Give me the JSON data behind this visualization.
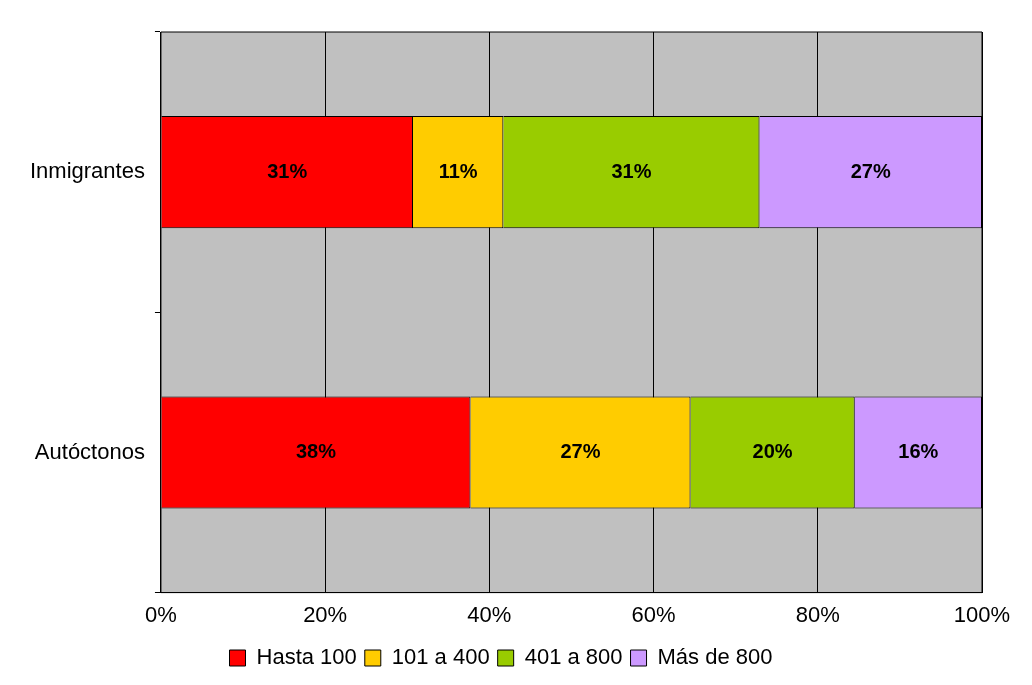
{
  "chart_data": {
    "type": "bar",
    "orientation": "horizontal",
    "stacked": true,
    "categories": [
      "Inmigrantes",
      "Autóctonos"
    ],
    "series": [
      {
        "name": "Hasta 100",
        "color": "#ff0000",
        "values": [
          30.7,
          37.7
        ],
        "value_labels": [
          "31%",
          "38%"
        ]
      },
      {
        "name": "101 a 400",
        "color": "#ffcc00",
        "values": [
          11.0,
          26.8
        ],
        "value_labels": [
          "11%",
          "27%"
        ]
      },
      {
        "name": "401 a 800",
        "color": "#99cc00",
        "values": [
          31.2,
          20.0
        ],
        "value_labels": [
          "31%",
          "20%"
        ]
      },
      {
        "name": "Más de 800",
        "color": "#cc99ff",
        "values": [
          27.1,
          15.5
        ],
        "value_labels": [
          "27%",
          "16%"
        ]
      }
    ],
    "xlim": [
      0,
      100
    ],
    "xticks": [
      {
        "value": 0,
        "label": "0%"
      },
      {
        "value": 20,
        "label": "20%"
      },
      {
        "value": 40,
        "label": "40%"
      },
      {
        "value": 60,
        "label": "60%"
      },
      {
        "value": 80,
        "label": "80%"
      },
      {
        "value": 100,
        "label": "100%"
      }
    ],
    "grid": "x",
    "legend": "bottom"
  }
}
